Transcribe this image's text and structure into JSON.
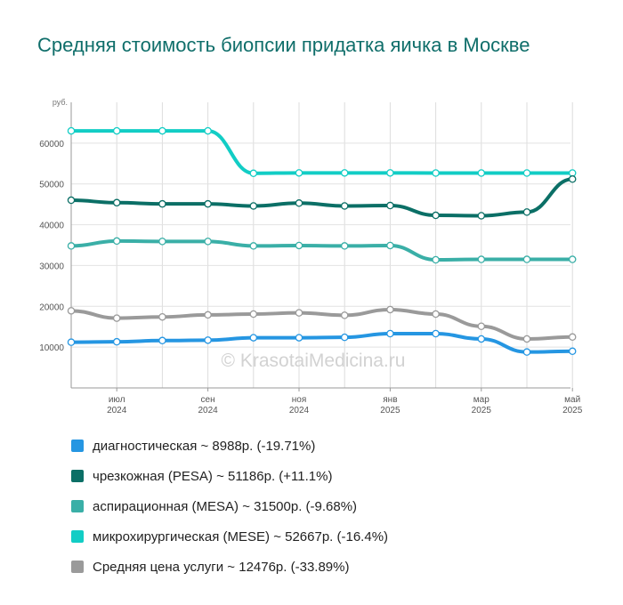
{
  "title": "Средняя стоимость биопсии придатка яичка в Москве",
  "watermark": "© KrasotaiMedicina.ru",
  "chart_data": {
    "type": "line",
    "ylabel": "руб.",
    "ylim": [
      0,
      70000
    ],
    "y_ticks": [
      10000,
      20000,
      30000,
      40000,
      50000,
      60000
    ],
    "x_ticks": [
      {
        "index": 1,
        "month": "июл",
        "year": "2024"
      },
      {
        "index": 3,
        "month": "сен",
        "year": "2024"
      },
      {
        "index": 5,
        "month": "ноя",
        "year": "2024"
      },
      {
        "index": 7,
        "month": "янв",
        "year": "2025"
      },
      {
        "index": 9,
        "month": "мар",
        "year": "2025"
      },
      {
        "index": 11,
        "month": "май",
        "year": "2025"
      }
    ],
    "grid": true,
    "legend_position": "bottom",
    "series": [
      {
        "name": "диагностическая",
        "color": "#2596e2",
        "values": [
          11200,
          11300,
          11600,
          11700,
          12300,
          12300,
          12400,
          13300,
          13300,
          12000,
          8800,
          8988
        ]
      },
      {
        "name": "чрезкожная (PESA)",
        "color": "#0b6f66",
        "values": [
          46000,
          45400,
          45100,
          45100,
          44600,
          45300,
          44600,
          44700,
          42300,
          42200,
          43100,
          51186
        ]
      },
      {
        "name": "аспирационная (MESA)",
        "color": "#3aafa7",
        "values": [
          34800,
          36000,
          35900,
          35900,
          34800,
          34900,
          34800,
          34900,
          31400,
          31500,
          31500,
          31500
        ]
      },
      {
        "name": "микрохирургическая (MESE)",
        "color": "#12cdc5",
        "values": [
          63000,
          63000,
          63000,
          63000,
          52600,
          52700,
          52700,
          52700,
          52667,
          52667,
          52667,
          52667
        ]
      },
      {
        "name": "Средняя цена услуги",
        "color": "#9a9a9a",
        "values": [
          18900,
          17100,
          17400,
          17900,
          18100,
          18400,
          17800,
          19200,
          18100,
          15100,
          12000,
          12476
        ]
      }
    ]
  },
  "legend": [
    {
      "label": "диагностическая ~ 8988р. (-19.71%)",
      "color": "#2596e2"
    },
    {
      "label": "чрезкожная (PESA) ~ 51186р. (+11.1%)",
      "color": "#0b6f66"
    },
    {
      "label": "аспирационная (MESA) ~ 31500р. (-9.68%)",
      "color": "#3aafa7"
    },
    {
      "label": "микрохирургическая (MESE) ~ 52667р. (-16.4%)",
      "color": "#12cdc5"
    },
    {
      "label": "Средняя цена услуги ~ 12476р. (-33.89%)",
      "color": "#9a9a9a"
    }
  ]
}
